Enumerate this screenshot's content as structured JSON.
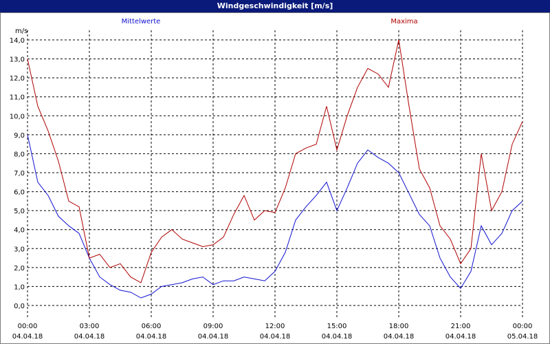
{
  "window": {
    "title": "Windgeschwindigkeit [m/s]"
  },
  "chart_data": {
    "type": "line",
    "title": "Windgeschwindigkeit [m/s]",
    "ylabel": "m/s",
    "ylim": [
      0,
      14
    ],
    "xlim": [
      0,
      24
    ],
    "grid": true,
    "legend_placement": "top",
    "y_ticks": [
      "0,0",
      "1,0",
      "2,0",
      "3,0",
      "4,0",
      "5,0",
      "6,0",
      "7,0",
      "8,0",
      "9,0",
      "10,0",
      "11,0",
      "12,0",
      "13,0",
      "14,0"
    ],
    "x_ticks": [
      {
        "time": "00:00",
        "date": "04.04.18"
      },
      {
        "time": "03:00",
        "date": "04.04.18"
      },
      {
        "time": "06:00",
        "date": "04.04.18"
      },
      {
        "time": "09:00",
        "date": "04.04.18"
      },
      {
        "time": "12:00",
        "date": "04.04.18"
      },
      {
        "time": "15:00",
        "date": "04.04.18"
      },
      {
        "time": "18:00",
        "date": "04.04.18"
      },
      {
        "time": "21:00",
        "date": "04.04.18"
      },
      {
        "time": "00:00",
        "date": "05.04.18"
      }
    ],
    "series": [
      {
        "name": "Mittelwerte",
        "color": "#1010d0",
        "x": [
          0,
          0.5,
          1,
          1.5,
          2,
          2.5,
          3,
          3.5,
          4,
          4.5,
          5,
          5.5,
          6,
          6.5,
          7,
          7.5,
          8,
          8.5,
          9,
          9.5,
          10,
          10.5,
          11,
          11.5,
          12,
          12.5,
          13,
          13.5,
          14,
          14.5,
          15,
          15.5,
          16,
          16.5,
          17,
          17.5,
          18,
          18.5,
          19,
          19.5,
          20,
          20.5,
          21,
          21.5,
          22,
          22.5,
          23,
          23.5,
          24
        ],
        "values": [
          9.0,
          6.5,
          5.8,
          4.7,
          4.2,
          3.8,
          2.5,
          1.5,
          1.1,
          0.8,
          0.7,
          0.4,
          0.6,
          1.0,
          1.1,
          1.2,
          1.4,
          1.5,
          1.1,
          1.3,
          1.3,
          1.5,
          1.4,
          1.3,
          1.8,
          2.8,
          4.5,
          5.2,
          5.8,
          6.5,
          5.0,
          6.2,
          7.5,
          8.2,
          7.8,
          7.5,
          7.0,
          5.9,
          4.8,
          4.2,
          2.5,
          1.5,
          0.9,
          1.8,
          4.2,
          3.2,
          3.8,
          5.0,
          5.5
        ]
      },
      {
        "name": "Maxima",
        "color": "#b00000",
        "x": [
          0,
          0.5,
          1,
          1.5,
          2,
          2.5,
          3,
          3.5,
          4,
          4.5,
          5,
          5.5,
          6,
          6.5,
          7,
          7.5,
          8,
          8.5,
          9,
          9.5,
          10,
          10.5,
          11,
          11.5,
          12,
          12.5,
          13,
          13.5,
          14,
          14.5,
          15,
          15.5,
          16,
          16.5,
          17,
          17.5,
          18,
          18.5,
          19,
          19.5,
          20,
          20.5,
          21,
          21.5,
          22,
          22.5,
          23,
          23.5,
          24
        ],
        "values": [
          13.0,
          10.5,
          9.2,
          7.6,
          5.5,
          5.2,
          2.5,
          2.7,
          2.0,
          2.2,
          1.5,
          1.2,
          2.8,
          3.6,
          4.0,
          3.5,
          3.3,
          3.1,
          3.2,
          3.6,
          4.8,
          5.8,
          4.5,
          5.0,
          4.9,
          6.2,
          8.0,
          8.3,
          8.5,
          10.5,
          8.2,
          10.0,
          11.5,
          12.5,
          12.2,
          11.5,
          14.0,
          10.5,
          7.2,
          6.2,
          4.2,
          3.5,
          2.2,
          3.0,
          8.0,
          5.0,
          6.0,
          8.5,
          9.7
        ]
      }
    ]
  }
}
